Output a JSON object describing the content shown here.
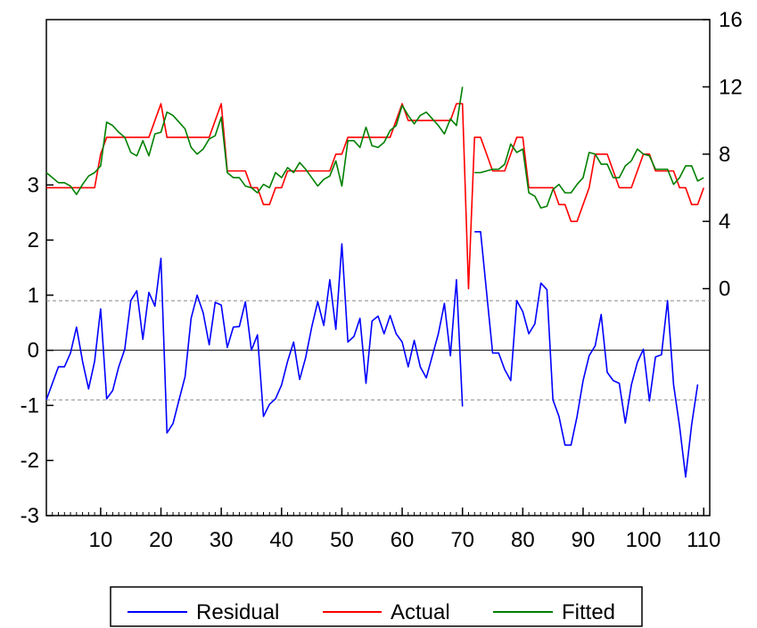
{
  "chart_data": {
    "type": "line",
    "title": "",
    "xlabel": "",
    "x_range": [
      1,
      111
    ],
    "x_ticks": [
      10,
      20,
      30,
      40,
      50,
      60,
      70,
      80,
      90,
      100,
      110
    ],
    "y_left": {
      "range": [
        -3,
        6
      ],
      "ticks": [
        -3,
        -2,
        -1,
        0,
        1,
        2,
        3
      ]
    },
    "y_right": {
      "range": [
        -13.5,
        16
      ],
      "ticks": [
        0,
        4,
        8,
        12,
        16
      ]
    },
    "residual_band": 0.9,
    "grid": false,
    "legend_position": "bottom",
    "series": [
      {
        "name": "Residual",
        "axis": "left",
        "color": "#0000ff",
        "values": [
          -0.9,
          -0.6,
          -0.3,
          -0.3,
          -0.05,
          0.42,
          -0.2,
          -0.7,
          -0.2,
          0.75,
          -0.88,
          -0.73,
          -0.3,
          0.02,
          0.9,
          1.08,
          0.2,
          1.05,
          0.8,
          1.67,
          -1.5,
          -1.33,
          -0.9,
          -0.48,
          0.58,
          1.0,
          0.68,
          0.1,
          0.87,
          0.82,
          0.05,
          0.42,
          0.43,
          0.88,
          0.0,
          0.28,
          -1.2,
          -0.98,
          -0.88,
          -0.63,
          -0.2,
          0.15,
          -0.53,
          -0.13,
          0.42,
          0.88,
          0.45,
          1.28,
          0.38,
          1.93,
          0.15,
          0.25,
          0.58,
          -0.6,
          0.53,
          0.62,
          0.3,
          0.63,
          0.3,
          0.15,
          -0.3,
          0.18,
          -0.3,
          -0.5,
          -0.1,
          0.3,
          0.85,
          -0.1,
          1.28,
          -1.02,
          null,
          2.15,
          2.15,
          1.05,
          -0.05,
          -0.05,
          -0.35,
          -0.55,
          0.9,
          0.7,
          0.3,
          0.48,
          1.22,
          1.1,
          -0.9,
          -1.2,
          -1.72,
          -1.72,
          -1.2,
          -0.55,
          -0.1,
          0.08,
          0.65,
          -0.4,
          -0.55,
          -0.6,
          -1.32,
          -0.63,
          -0.22,
          0.02,
          -0.92,
          -0.12,
          -0.08,
          0.9,
          -0.62,
          -1.38,
          -2.3,
          -1.35,
          -0.62
        ]
      },
      {
        "name": "Actual",
        "axis": "right",
        "color": "#ff0000",
        "values": [
          6,
          6,
          6,
          6,
          6,
          6,
          6,
          6,
          6,
          8,
          9,
          9,
          9,
          9,
          9,
          9,
          9,
          9,
          10,
          11,
          9,
          9,
          9,
          9,
          9,
          9,
          9,
          9,
          10,
          11,
          7,
          7,
          7,
          7,
          6,
          6,
          5,
          5,
          6,
          6,
          7,
          7,
          7,
          7,
          7,
          7,
          7,
          7,
          8,
          8,
          9,
          9,
          9,
          9,
          9,
          9,
          9,
          9,
          10,
          11,
          10,
          10,
          10,
          10,
          10,
          10,
          10,
          10,
          11,
          11,
          0,
          9,
          9,
          8,
          7,
          7,
          7,
          8,
          9,
          9,
          6,
          6,
          6,
          6,
          6,
          5,
          5,
          4,
          4,
          5,
          6,
          8,
          8,
          8,
          7,
          6,
          6,
          6,
          7,
          8,
          8,
          7,
          7,
          7,
          7,
          6,
          6,
          5,
          5,
          6
        ]
      },
      {
        "name": "Fitted",
        "axis": "right",
        "color": "#008000",
        "values": [
          6.9,
          6.6,
          6.3,
          6.3,
          6.1,
          5.6,
          6.2,
          6.7,
          6.9,
          7.3,
          9.9,
          9.7,
          9.3,
          9.0,
          8.1,
          7.9,
          8.8,
          7.9,
          9.2,
          9.3,
          10.5,
          10.3,
          9.9,
          9.5,
          8.4,
          8.0,
          8.3,
          8.9,
          9.1,
          10.2,
          6.9,
          6.6,
          6.6,
          6.1,
          6.0,
          5.7,
          6.2,
          6.0,
          6.9,
          6.6,
          7.2,
          6.9,
          7.5,
          7.1,
          6.6,
          6.1,
          6.5,
          6.7,
          7.6,
          6.1,
          8.8,
          8.8,
          8.4,
          9.6,
          8.5,
          8.4,
          8.7,
          9.4,
          9.7,
          10.9,
          10.3,
          9.8,
          10.3,
          10.5,
          10.1,
          9.7,
          9.2,
          10.1,
          9.7,
          12.0,
          null,
          6.9,
          6.9,
          7.0,
          7.1,
          7.1,
          7.4,
          8.6,
          8.1,
          8.3,
          5.7,
          5.5,
          4.8,
          4.9,
          5.9,
          6.2,
          5.7,
          5.7,
          6.2,
          6.6,
          8.1,
          8.0,
          7.4,
          7.4,
          6.6,
          6.6,
          7.3,
          7.6,
          8.3,
          8.0,
          7.9,
          7.1,
          7.1,
          7.1,
          6.2,
          6.6,
          7.3,
          7.3,
          6.4,
          6.6
        ]
      }
    ]
  }
}
